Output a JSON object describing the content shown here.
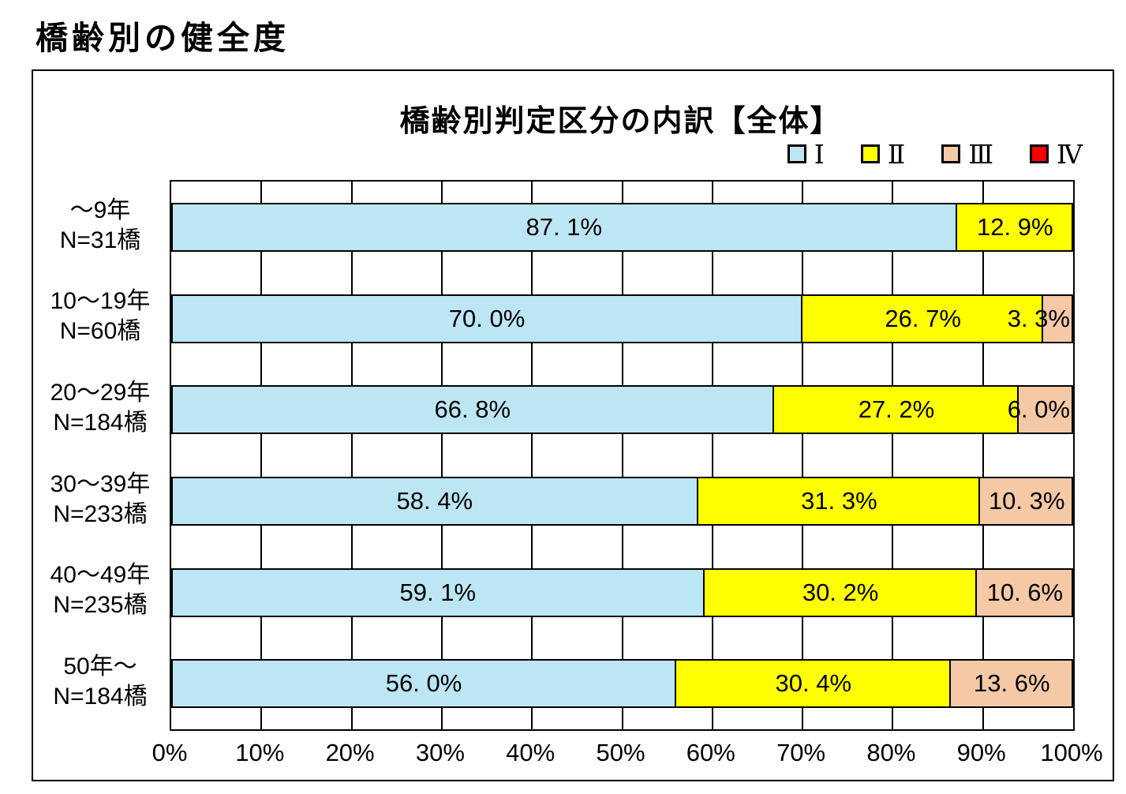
{
  "page_title": "橋齢別の健全度",
  "chart_data": {
    "type": "bar",
    "orientation": "horizontal",
    "stacked": true,
    "title": "橋齢別判定区分の内訳【全体】",
    "categories": [
      {
        "age": "～9年",
        "n": "N=31橋"
      },
      {
        "age": "10～19年",
        "n": "N=60橋"
      },
      {
        "age": "20～29年",
        "n": "N=184橋"
      },
      {
        "age": "30～39年",
        "n": "N=233橋"
      },
      {
        "age": "40～49年",
        "n": "N=235橋"
      },
      {
        "age": "50年～",
        "n": "N=184橋"
      }
    ],
    "series": [
      {
        "name": "Ⅰ",
        "color": "#BDE6F4",
        "values": [
          87.1,
          70.0,
          66.8,
          58.4,
          59.1,
          56.0
        ],
        "labels": [
          "87. 1%",
          "70. 0%",
          "66. 8%",
          "58. 4%",
          "59. 1%",
          "56. 0%"
        ]
      },
      {
        "name": "Ⅱ",
        "color": "#FFFF00",
        "values": [
          12.9,
          26.7,
          27.2,
          31.3,
          30.2,
          30.4
        ],
        "labels": [
          "12. 9%",
          "26. 7%",
          "27. 2%",
          "31. 3%",
          "30. 2%",
          "30. 4%"
        ]
      },
      {
        "name": "Ⅲ",
        "color": "#F5C9A6",
        "values": [
          0,
          3.3,
          6.0,
          10.3,
          10.6,
          13.6
        ],
        "labels": [
          "",
          "3. 3%",
          "6. 0%",
          "10. 3%",
          "10. 6%",
          "13. 6%"
        ]
      },
      {
        "name": "Ⅳ",
        "color": "#FF0000",
        "values": [
          0,
          0,
          0,
          0,
          0,
          0
        ],
        "labels": [
          "",
          "",
          "",
          "",
          "",
          ""
        ]
      }
    ],
    "x_ticks": [
      "0%",
      "10%",
      "20%",
      "30%",
      "40%",
      "50%",
      "60%",
      "70%",
      "80%",
      "90%",
      "100%"
    ],
    "xlim": [
      0,
      100
    ],
    "grid": "vertical gridlines every 10%",
    "legend_position": "top-right",
    "border_color": "#000000",
    "background_color": "#FFFFFF"
  }
}
